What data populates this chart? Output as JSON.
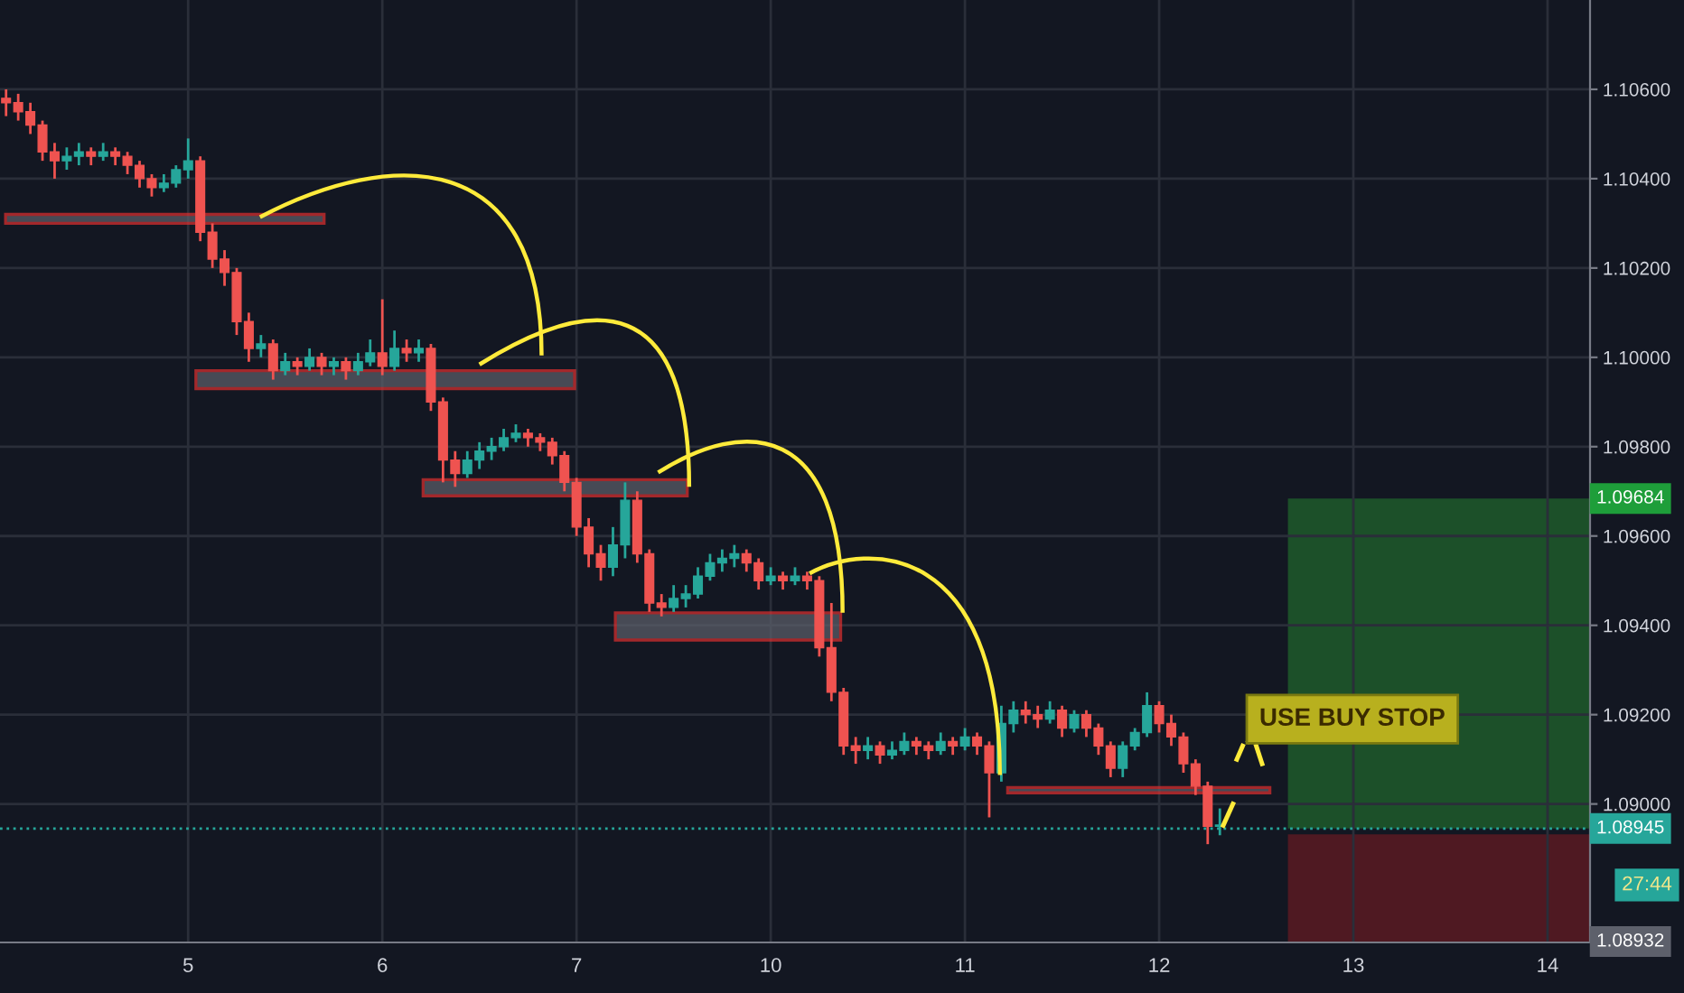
{
  "chart_data": {
    "type": "candlestick",
    "categories": [
      null,
      null,
      null,
      null,
      null,
      null,
      null,
      null,
      null,
      null,
      null,
      null,
      null,
      null,
      null,
      "5",
      null,
      null,
      null,
      null,
      null,
      null,
      null,
      null,
      null,
      null,
      null,
      null,
      null,
      null,
      null,
      "6",
      null,
      null,
      null,
      null,
      null,
      null,
      null,
      null,
      null,
      null,
      null,
      null,
      null,
      null,
      null,
      "7",
      null,
      null,
      null,
      null,
      null,
      null,
      null,
      null,
      null,
      null,
      null,
      null,
      null,
      null,
      null,
      "10",
      null,
      null,
      null,
      null,
      null,
      null,
      null,
      null,
      null,
      null,
      null,
      null,
      null,
      null,
      null,
      "11",
      null,
      null,
      null,
      null,
      null,
      null,
      null,
      null,
      null,
      null,
      null,
      null,
      null,
      null,
      null,
      "12",
      null,
      null,
      null,
      null,
      null,
      null,
      null,
      null,
      null,
      null,
      null,
      null,
      null,
      null,
      null,
      "13",
      null,
      null,
      null,
      null,
      null,
      null,
      null,
      null,
      null,
      null,
      null,
      null,
      null,
      null,
      null,
      "14",
      null,
      null,
      null
    ],
    "ohlc": [
      [
        1.1058,
        1.106,
        1.1054,
        1.1057
      ],
      [
        1.1057,
        1.1059,
        1.1053,
        1.1055
      ],
      [
        1.1055,
        1.1057,
        1.105,
        1.1052
      ],
      [
        1.1052,
        1.1053,
        1.1044,
        1.1046
      ],
      [
        1.1046,
        1.1048,
        1.104,
        1.1044
      ],
      [
        1.1044,
        1.1047,
        1.1042,
        1.1045
      ],
      [
        1.1045,
        1.1048,
        1.1043,
        1.1046
      ],
      [
        1.1046,
        1.1047,
        1.1043,
        1.1045
      ],
      [
        1.1045,
        1.1048,
        1.1044,
        1.1046
      ],
      [
        1.1046,
        1.1047,
        1.1043,
        1.1045
      ],
      [
        1.1045,
        1.1046,
        1.1041,
        1.1043
      ],
      [
        1.1043,
        1.1044,
        1.1038,
        1.104
      ],
      [
        1.104,
        1.1041,
        1.1036,
        1.1038
      ],
      [
        1.1038,
        1.1041,
        1.1037,
        1.1039
      ],
      [
        1.1039,
        1.1043,
        1.1038,
        1.1042
      ],
      [
        1.1042,
        1.1049,
        1.104,
        1.1044
      ],
      [
        1.1044,
        1.1045,
        1.1026,
        1.1028
      ],
      [
        1.1028,
        1.103,
        1.102,
        1.1022
      ],
      [
        1.1022,
        1.1024,
        1.1016,
        1.1019
      ],
      [
        1.1019,
        1.102,
        1.1005,
        1.1008
      ],
      [
        1.1008,
        1.101,
        1.0999,
        1.1002
      ],
      [
        1.1002,
        1.1005,
        1.1,
        1.1003
      ],
      [
        1.1003,
        1.1004,
        1.0995,
        1.0997
      ],
      [
        1.0997,
        1.1001,
        1.0996,
        1.0999
      ],
      [
        1.0999,
        1.1,
        1.0996,
        1.0998
      ],
      [
        1.0998,
        1.1002,
        1.0997,
        1.1
      ],
      [
        1.1,
        1.1001,
        1.0996,
        1.0998
      ],
      [
        1.0998,
        1.1,
        1.0996,
        1.0999
      ],
      [
        1.0999,
        1.1,
        1.0995,
        1.0997
      ],
      [
        1.0997,
        1.1001,
        1.0996,
        1.0999
      ],
      [
        1.0999,
        1.1004,
        1.0998,
        1.1001
      ],
      [
        1.1001,
        1.1013,
        1.0996,
        1.0998
      ],
      [
        1.0998,
        1.1006,
        1.0997,
        1.1002
      ],
      [
        1.1002,
        1.1004,
        1.0999,
        1.1001
      ],
      [
        1.1001,
        1.1004,
        1.0999,
        1.1002
      ],
      [
        1.1002,
        1.1003,
        1.0988,
        1.099
      ],
      [
        1.099,
        1.0991,
        1.0972,
        1.0977
      ],
      [
        1.0977,
        1.0979,
        1.0971,
        1.0974
      ],
      [
        1.0974,
        1.0979,
        1.0973,
        1.0977
      ],
      [
        1.0977,
        1.0981,
        1.0975,
        1.0979
      ],
      [
        1.0979,
        1.0982,
        1.0977,
        1.098
      ],
      [
        1.098,
        1.0984,
        1.0979,
        1.0982
      ],
      [
        1.0982,
        1.0985,
        1.0981,
        1.0983
      ],
      [
        1.0983,
        1.0984,
        1.098,
        1.0982
      ],
      [
        1.0982,
        1.0983,
        1.0979,
        1.0981
      ],
      [
        1.0981,
        1.0982,
        1.0976,
        1.0978
      ],
      [
        1.0978,
        1.0979,
        1.097,
        1.0972
      ],
      [
        1.0972,
        1.0973,
        1.096,
        1.0962
      ],
      [
        1.0962,
        1.0964,
        1.0953,
        1.0956
      ],
      [
        1.0956,
        1.0958,
        1.095,
        1.0953
      ],
      [
        1.0953,
        1.0962,
        1.0951,
        1.0958
      ],
      [
        1.0958,
        1.0972,
        1.0955,
        1.0968
      ],
      [
        1.0968,
        1.097,
        1.0954,
        1.0956
      ],
      [
        1.0956,
        1.0957,
        1.0943,
        1.0945
      ],
      [
        1.0945,
        1.0947,
        1.0942,
        1.0944
      ],
      [
        1.0944,
        1.0949,
        1.0943,
        1.0946
      ],
      [
        1.0946,
        1.0949,
        1.0944,
        1.0947
      ],
      [
        1.0947,
        1.0953,
        1.0946,
        1.0951
      ],
      [
        1.0951,
        1.0956,
        1.095,
        1.0954
      ],
      [
        1.0954,
        1.0957,
        1.0952,
        1.0955
      ],
      [
        1.0955,
        1.0958,
        1.0953,
        1.0956
      ],
      [
        1.0956,
        1.0957,
        1.0952,
        1.0954
      ],
      [
        1.0954,
        1.0955,
        1.0948,
        1.095
      ],
      [
        1.095,
        1.0953,
        1.0949,
        1.0951
      ],
      [
        1.0951,
        1.0952,
        1.0948,
        1.095
      ],
      [
        1.095,
        1.0953,
        1.0949,
        1.0951
      ],
      [
        1.0951,
        1.0952,
        1.0948,
        1.095
      ],
      [
        1.095,
        1.0951,
        1.0933,
        1.0935
      ],
      [
        1.0935,
        1.0945,
        1.0923,
        1.0925
      ],
      [
        1.0925,
        1.0926,
        1.0911,
        1.0913
      ],
      [
        1.0913,
        1.0915,
        1.0909,
        1.0912
      ],
      [
        1.0912,
        1.0915,
        1.091,
        1.0913
      ],
      [
        1.0913,
        1.0914,
        1.0909,
        1.0911
      ],
      [
        1.0911,
        1.0914,
        1.091,
        1.0912
      ],
      [
        1.0912,
        1.0916,
        1.0911,
        1.0914
      ],
      [
        1.0914,
        1.0915,
        1.0911,
        1.0913
      ],
      [
        1.0913,
        1.0914,
        1.091,
        1.0912
      ],
      [
        1.0912,
        1.0916,
        1.0911,
        1.0914
      ],
      [
        1.0914,
        1.0915,
        1.0911,
        1.0913
      ],
      [
        1.0913,
        1.0917,
        1.0912,
        1.0915
      ],
      [
        1.0915,
        1.0916,
        1.0911,
        1.0913
      ],
      [
        1.0913,
        1.0914,
        1.0897,
        1.0907
      ],
      [
        1.0907,
        1.0922,
        1.0905,
        1.0918
      ],
      [
        1.0918,
        1.0923,
        1.0916,
        1.0921
      ],
      [
        1.0921,
        1.0923,
        1.0918,
        1.092
      ],
      [
        1.092,
        1.0922,
        1.0917,
        1.0919
      ],
      [
        1.0919,
        1.0923,
        1.0918,
        1.0921
      ],
      [
        1.0921,
        1.0922,
        1.0915,
        1.0917
      ],
      [
        1.0917,
        1.0921,
        1.0916,
        1.092
      ],
      [
        1.092,
        1.0921,
        1.0915,
        1.0917
      ],
      [
        1.0917,
        1.0918,
        1.0911,
        1.0913
      ],
      [
        1.0913,
        1.0914,
        1.0906,
        1.0908
      ],
      [
        1.0908,
        1.0914,
        1.0906,
        1.0913
      ],
      [
        1.0913,
        1.0917,
        1.0912,
        1.0916
      ],
      [
        1.0916,
        1.0925,
        1.0915,
        1.0922
      ],
      [
        1.0922,
        1.0923,
        1.0916,
        1.0918
      ],
      [
        1.0918,
        1.092,
        1.0913,
        1.0915
      ],
      [
        1.0915,
        1.0916,
        1.0907,
        1.0909
      ],
      [
        1.0909,
        1.091,
        1.0902,
        1.0904
      ],
      [
        1.0904,
        1.0905,
        1.0891,
        1.0895
      ],
      [
        1.0895,
        1.0899,
        1.0893,
        1.0895
      ],
      null,
      null,
      null,
      null,
      null,
      null,
      null,
      null,
      null,
      null,
      null,
      null,
      null,
      null,
      null,
      null,
      null,
      null,
      null,
      null,
      null,
      null,
      null,
      null,
      null,
      null,
      null,
      null,
      null,
      null
    ],
    "ylim": [
      1.0869,
      1.108
    ],
    "yticks": [
      {
        "value": 1.09,
        "label": "1.09000"
      },
      {
        "value": 1.092,
        "label": "1.09200"
      },
      {
        "value": 1.094,
        "label": "1.09400"
      },
      {
        "value": 1.096,
        "label": "1.09600"
      },
      {
        "value": 1.098,
        "label": "1.09800"
      },
      {
        "value": 1.1,
        "label": "1.10000"
      },
      {
        "value": 1.102,
        "label": "1.10200"
      },
      {
        "value": 1.104,
        "label": "1.10400"
      },
      {
        "value": 1.106,
        "label": "1.10600"
      }
    ],
    "grid": true,
    "ref_lines": [
      {
        "axis": "y",
        "value": 1.08945,
        "label": "1.08945",
        "color": "#26a69a",
        "line_style": "dotted"
      }
    ],
    "bands": [
      {
        "axis": "y",
        "from": 1.08945,
        "to": 1.09684,
        "label": "1.09684",
        "color": "#1e5b2a"
      },
      {
        "axis": "y",
        "from": 1.0869,
        "to": 1.08932,
        "label": "1.08932",
        "color": "#5a1a22"
      }
    ],
    "annotations": [
      "USE BUY STOP",
      "27:44"
    ]
  }
}
